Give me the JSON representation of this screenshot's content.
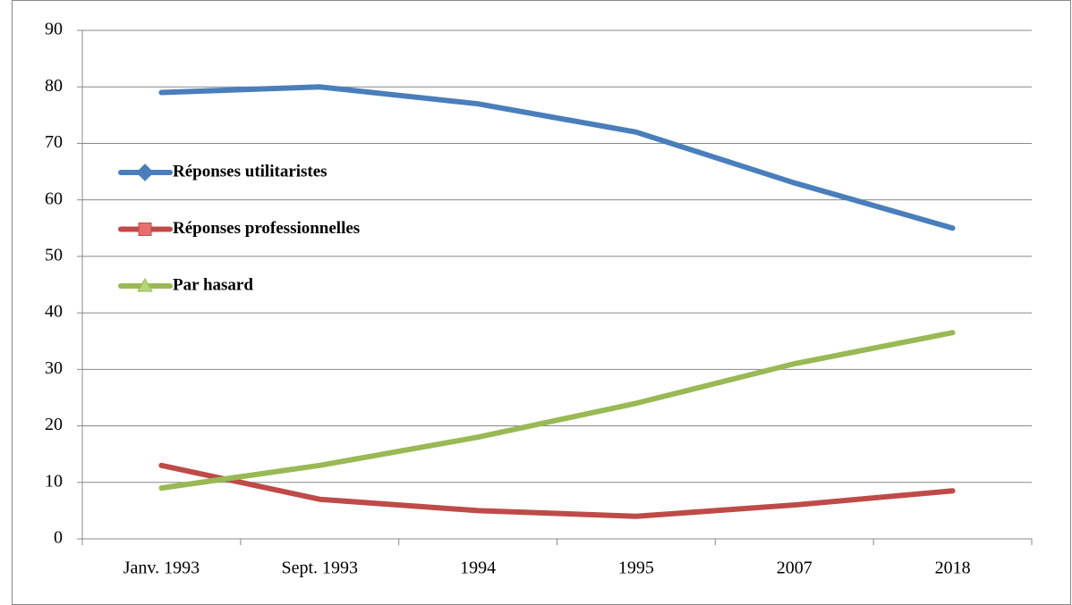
{
  "chart_data": {
    "type": "line",
    "categories": [
      "Janv. 1993",
      "Sept. 1993",
      "1994",
      "1995",
      "2007",
      "2018"
    ],
    "series": [
      {
        "name": "Réponses utilitaristes",
        "color": "#4a7ebb",
        "values": [
          79,
          80,
          77,
          72,
          63,
          55
        ]
      },
      {
        "name": "Réponses professionnelles",
        "color": "#be4b48",
        "values": [
          13,
          7,
          5,
          4,
          6,
          8.5
        ]
      },
      {
        "name": "Par hasard",
        "color": "#98b954",
        "values": [
          9,
          13,
          18,
          24,
          31,
          36.5
        ]
      }
    ],
    "ylim": [
      0,
      90
    ],
    "yticks": [
      0,
      10,
      20,
      30,
      40,
      50,
      60,
      70,
      80,
      90
    ],
    "grid": true,
    "legend": "upper left"
  }
}
